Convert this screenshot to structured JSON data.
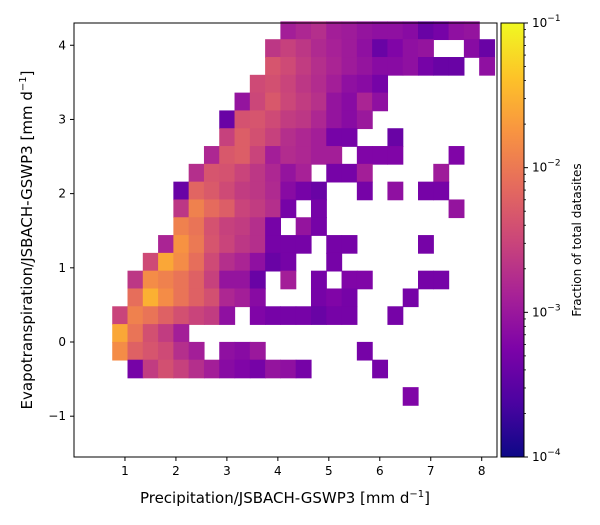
{
  "chart_data": {
    "type": "heatmap",
    "title": "",
    "xlabel_main": "Precipitation/JSBACH-GSWP3 [mm d",
    "xlabel_exp": "−1",
    "xlabel_close": "]",
    "ylabel_main": "Evapotranspiration/JSBACH-GSWP3 [mm d",
    "ylabel_exp": "−1",
    "ylabel_close": "]",
    "xlim": [
      0.0,
      8.3
    ],
    "ylim": [
      -1.55,
      4.3
    ],
    "xticks": [
      1,
      2,
      3,
      4,
      5,
      6,
      7,
      8
    ],
    "yticks": [
      -1,
      0,
      1,
      2,
      3,
      4
    ],
    "x_bin_width": 0.3,
    "y_bin_width": 0.243,
    "colorbar": {
      "label": "Fraction of total datasites",
      "scale": "log",
      "range": [
        0.0001,
        0.1
      ],
      "ticks": [
        {
          "value": 0.1,
          "base": "10",
          "exp": "−1"
        },
        {
          "value": 0.01,
          "base": "10",
          "exp": "−2"
        },
        {
          "value": 0.001,
          "base": "10",
          "exp": "−3"
        },
        {
          "value": 0.0001,
          "base": "10",
          "exp": "−4"
        }
      ],
      "colormap": "plasma"
    },
    "cells": [
      [
        4.2,
        4.2,
        0.0012
      ],
      [
        4.5,
        4.2,
        0.0015
      ],
      [
        4.8,
        4.2,
        0.0018
      ],
      [
        5.1,
        4.2,
        0.0012
      ],
      [
        5.4,
        4.2,
        0.0011
      ],
      [
        5.7,
        4.2,
        0.0009
      ],
      [
        6.0,
        4.2,
        0.0008
      ],
      [
        6.3,
        4.2,
        0.0008
      ],
      [
        6.6,
        4.2,
        0.0007
      ],
      [
        6.9,
        4.2,
        0.0004
      ],
      [
        7.2,
        4.2,
        0.0005
      ],
      [
        7.5,
        4.2,
        0.0008
      ],
      [
        7.8,
        4.2,
        0.0009
      ],
      [
        3.9,
        3.96,
        0.0022
      ],
      [
        4.2,
        3.96,
        0.0028
      ],
      [
        4.5,
        3.96,
        0.0022
      ],
      [
        4.8,
        3.96,
        0.0016
      ],
      [
        5.1,
        3.96,
        0.0013
      ],
      [
        5.4,
        3.96,
        0.0011
      ],
      [
        5.7,
        3.96,
        0.0008
      ],
      [
        6.0,
        3.96,
        0.0004
      ],
      [
        6.3,
        3.96,
        0.0006
      ],
      [
        6.6,
        3.96,
        0.0008
      ],
      [
        6.9,
        3.96,
        0.0009
      ],
      [
        7.8,
        3.96,
        0.0007
      ],
      [
        8.1,
        3.96,
        0.0004
      ],
      [
        3.9,
        3.72,
        0.0045
      ],
      [
        4.2,
        3.72,
        0.0035
      ],
      [
        4.5,
        3.72,
        0.0025
      ],
      [
        4.8,
        3.72,
        0.0018
      ],
      [
        5.1,
        3.72,
        0.0014
      ],
      [
        5.4,
        3.72,
        0.0011
      ],
      [
        5.7,
        3.72,
        0.0009
      ],
      [
        6.0,
        3.72,
        0.0007
      ],
      [
        6.3,
        3.72,
        0.0007
      ],
      [
        6.6,
        3.72,
        0.0008
      ],
      [
        6.9,
        3.72,
        0.0005
      ],
      [
        7.2,
        3.72,
        0.0004
      ],
      [
        7.5,
        3.72,
        0.0004
      ],
      [
        8.1,
        3.72,
        0.0008
      ],
      [
        3.6,
        3.48,
        0.0035
      ],
      [
        3.9,
        3.48,
        0.004
      ],
      [
        4.2,
        3.48,
        0.003
      ],
      [
        4.5,
        3.48,
        0.0022
      ],
      [
        4.8,
        3.48,
        0.0017
      ],
      [
        5.1,
        3.48,
        0.0012
      ],
      [
        5.4,
        3.48,
        0.0008
      ],
      [
        5.7,
        3.48,
        0.0007
      ],
      [
        6.0,
        3.48,
        0.0005
      ],
      [
        3.3,
        3.24,
        0.0009
      ],
      [
        3.6,
        3.24,
        0.0032
      ],
      [
        3.9,
        3.24,
        0.0048
      ],
      [
        4.2,
        3.24,
        0.0032
      ],
      [
        4.5,
        3.24,
        0.0025
      ],
      [
        4.8,
        3.24,
        0.0019
      ],
      [
        5.1,
        3.24,
        0.0009
      ],
      [
        5.4,
        3.24,
        0.0007
      ],
      [
        5.7,
        3.24,
        0.0014
      ],
      [
        6.0,
        3.24,
        0.0008
      ],
      [
        3.0,
        3.0,
        0.0004
      ],
      [
        3.3,
        3.0,
        0.0042
      ],
      [
        3.6,
        3.0,
        0.0045
      ],
      [
        3.9,
        3.0,
        0.0035
      ],
      [
        4.2,
        3.0,
        0.0025
      ],
      [
        4.5,
        3.0,
        0.0022
      ],
      [
        4.8,
        3.0,
        0.0015
      ],
      [
        5.1,
        3.0,
        0.0009
      ],
      [
        5.4,
        3.0,
        0.0007
      ],
      [
        5.7,
        3.0,
        0.001
      ],
      [
        3.0,
        2.76,
        0.0028
      ],
      [
        3.3,
        2.76,
        0.0055
      ],
      [
        3.6,
        2.76,
        0.004
      ],
      [
        3.9,
        2.76,
        0.0028
      ],
      [
        4.2,
        2.76,
        0.0018
      ],
      [
        4.5,
        2.76,
        0.0015
      ],
      [
        4.8,
        2.76,
        0.0012
      ],
      [
        5.1,
        2.76,
        0.0005
      ],
      [
        5.4,
        2.76,
        0.0005
      ],
      [
        6.3,
        2.76,
        0.0004
      ],
      [
        2.7,
        2.52,
        0.0015
      ],
      [
        3.0,
        2.52,
        0.0048
      ],
      [
        3.3,
        2.52,
        0.0055
      ],
      [
        3.6,
        2.52,
        0.003
      ],
      [
        3.9,
        2.52,
        0.0012
      ],
      [
        4.2,
        2.52,
        0.0017
      ],
      [
        4.5,
        2.52,
        0.0015
      ],
      [
        4.8,
        2.52,
        0.0012
      ],
      [
        5.1,
        2.52,
        0.0012
      ],
      [
        5.7,
        2.52,
        0.0006
      ],
      [
        6.0,
        2.52,
        0.0006
      ],
      [
        6.3,
        2.52,
        0.0006
      ],
      [
        7.5,
        2.52,
        0.0006
      ],
      [
        2.4,
        2.28,
        0.0018
      ],
      [
        2.7,
        2.28,
        0.0045
      ],
      [
        3.0,
        2.28,
        0.0042
      ],
      [
        3.3,
        2.28,
        0.003
      ],
      [
        3.6,
        2.28,
        0.0022
      ],
      [
        3.9,
        2.28,
        0.0015
      ],
      [
        4.2,
        2.28,
        0.0009
      ],
      [
        4.5,
        2.28,
        0.0013
      ],
      [
        5.1,
        2.28,
        0.0005
      ],
      [
        5.4,
        2.28,
        0.0005
      ],
      [
        5.7,
        2.28,
        0.0012
      ],
      [
        7.2,
        2.28,
        0.0011
      ],
      [
        2.1,
        2.04,
        0.0004
      ],
      [
        2.4,
        2.04,
        0.0065
      ],
      [
        2.7,
        2.04,
        0.005
      ],
      [
        3.0,
        2.04,
        0.0035
      ],
      [
        3.3,
        2.04,
        0.0025
      ],
      [
        3.6,
        2.04,
        0.0022
      ],
      [
        3.9,
        2.04,
        0.0016
      ],
      [
        4.2,
        2.04,
        0.0007
      ],
      [
        4.5,
        2.04,
        0.0005
      ],
      [
        4.8,
        2.04,
        0.0004
      ],
      [
        5.7,
        2.04,
        0.0005
      ],
      [
        6.3,
        2.04,
        0.0008
      ],
      [
        6.9,
        2.04,
        0.0005
      ],
      [
        7.2,
        2.04,
        0.0005
      ],
      [
        2.1,
        1.8,
        0.0022
      ],
      [
        2.4,
        1.8,
        0.012
      ],
      [
        2.7,
        1.8,
        0.0075
      ],
      [
        3.0,
        1.8,
        0.0055
      ],
      [
        3.3,
        1.8,
        0.003
      ],
      [
        3.6,
        1.8,
        0.0025
      ],
      [
        3.9,
        1.8,
        0.0018
      ],
      [
        4.2,
        1.8,
        0.0005
      ],
      [
        4.8,
        1.8,
        0.0005
      ],
      [
        7.5,
        1.8,
        0.0009
      ],
      [
        2.1,
        1.56,
        0.012
      ],
      [
        2.4,
        1.56,
        0.009
      ],
      [
        2.7,
        1.56,
        0.0042
      ],
      [
        3.0,
        1.56,
        0.0028
      ],
      [
        3.3,
        1.56,
        0.0025
      ],
      [
        3.6,
        1.56,
        0.0018
      ],
      [
        3.9,
        1.56,
        0.0005
      ],
      [
        4.5,
        1.56,
        0.0009
      ],
      [
        4.8,
        1.56,
        0.0005
      ],
      [
        1.8,
        1.32,
        0.0014
      ],
      [
        2.1,
        1.32,
        0.017
      ],
      [
        2.4,
        1.32,
        0.01
      ],
      [
        2.7,
        1.32,
        0.0045
      ],
      [
        3.0,
        1.32,
        0.003
      ],
      [
        3.3,
        1.32,
        0.0022
      ],
      [
        3.6,
        1.32,
        0.0018
      ],
      [
        3.9,
        1.32,
        0.0005
      ],
      [
        4.2,
        1.32,
        0.0005
      ],
      [
        4.5,
        1.32,
        0.0005
      ],
      [
        5.1,
        1.32,
        0.0005
      ],
      [
        5.4,
        1.32,
        0.0005
      ],
      [
        6.9,
        1.32,
        0.0005
      ],
      [
        1.5,
        1.08,
        0.0035
      ],
      [
        1.8,
        1.08,
        0.025
      ],
      [
        2.1,
        1.08,
        0.015
      ],
      [
        2.4,
        1.08,
        0.008
      ],
      [
        2.7,
        1.08,
        0.0035
      ],
      [
        3.0,
        1.08,
        0.0018
      ],
      [
        3.3,
        1.08,
        0.0014
      ],
      [
        3.6,
        1.08,
        0.0008
      ],
      [
        3.9,
        1.08,
        0.0004
      ],
      [
        4.2,
        1.08,
        0.0005
      ],
      [
        5.1,
        1.08,
        0.0005
      ],
      [
        1.2,
        0.84,
        0.0022
      ],
      [
        1.5,
        0.84,
        0.015
      ],
      [
        1.8,
        0.84,
        0.012
      ],
      [
        2.1,
        0.84,
        0.009
      ],
      [
        2.4,
        0.84,
        0.006
      ],
      [
        2.7,
        0.84,
        0.0028
      ],
      [
        3.0,
        0.84,
        0.0009
      ],
      [
        3.3,
        0.84,
        0.0009
      ],
      [
        3.6,
        0.84,
        0.0004
      ],
      [
        4.2,
        0.84,
        0.0012
      ],
      [
        4.8,
        0.84,
        0.0005
      ],
      [
        5.4,
        0.84,
        0.0006
      ],
      [
        5.7,
        0.84,
        0.0006
      ],
      [
        6.9,
        0.84,
        0.0005
      ],
      [
        7.2,
        0.84,
        0.0005
      ],
      [
        1.2,
        0.6,
        0.008
      ],
      [
        1.5,
        0.6,
        0.03
      ],
      [
        1.8,
        0.6,
        0.015
      ],
      [
        2.1,
        0.6,
        0.009
      ],
      [
        2.4,
        0.6,
        0.006
      ],
      [
        2.7,
        0.6,
        0.004
      ],
      [
        3.0,
        0.6,
        0.0015
      ],
      [
        3.3,
        0.6,
        0.0012
      ],
      [
        3.6,
        0.6,
        0.0007
      ],
      [
        4.8,
        0.6,
        0.0005
      ],
      [
        5.1,
        0.6,
        0.0006
      ],
      [
        5.4,
        0.6,
        0.0005
      ],
      [
        6.6,
        0.6,
        0.0005
      ],
      [
        0.9,
        0.36,
        0.003
      ],
      [
        1.2,
        0.36,
        0.012
      ],
      [
        1.5,
        0.36,
        0.009
      ],
      [
        1.8,
        0.36,
        0.006
      ],
      [
        2.1,
        0.36,
        0.004
      ],
      [
        2.4,
        0.36,
        0.003
      ],
      [
        2.7,
        0.36,
        0.0025
      ],
      [
        3.0,
        0.36,
        0.0008
      ],
      [
        3.6,
        0.36,
        0.0006
      ],
      [
        3.9,
        0.36,
        0.0005
      ],
      [
        4.2,
        0.36,
        0.0005
      ],
      [
        4.5,
        0.36,
        0.0005
      ],
      [
        4.8,
        0.36,
        0.0004
      ],
      [
        5.1,
        0.36,
        0.0005
      ],
      [
        5.4,
        0.36,
        0.0005
      ],
      [
        6.3,
        0.36,
        0.0005
      ],
      [
        0.9,
        0.12,
        0.025
      ],
      [
        1.2,
        0.12,
        0.009
      ],
      [
        1.5,
        0.12,
        0.004
      ],
      [
        1.8,
        0.12,
        0.0025
      ],
      [
        2.1,
        0.12,
        0.0012
      ],
      [
        0.9,
        -0.12,
        0.015
      ],
      [
        1.2,
        -0.12,
        0.006
      ],
      [
        1.5,
        -0.12,
        0.0045
      ],
      [
        1.8,
        -0.12,
        0.0035
      ],
      [
        2.1,
        -0.12,
        0.0018
      ],
      [
        2.4,
        -0.12,
        0.0012
      ],
      [
        3.0,
        -0.12,
        0.0008
      ],
      [
        3.3,
        -0.12,
        0.0007
      ],
      [
        3.6,
        -0.12,
        0.001
      ],
      [
        5.7,
        -0.12,
        0.0005
      ],
      [
        1.2,
        -0.36,
        0.0005
      ],
      [
        1.5,
        -0.36,
        0.0025
      ],
      [
        1.8,
        -0.36,
        0.004
      ],
      [
        2.1,
        -0.36,
        0.0028
      ],
      [
        2.4,
        -0.36,
        0.0018
      ],
      [
        2.7,
        -0.36,
        0.0012
      ],
      [
        3.0,
        -0.36,
        0.0007
      ],
      [
        3.3,
        -0.36,
        0.0006
      ],
      [
        3.6,
        -0.36,
        0.0005
      ],
      [
        3.9,
        -0.36,
        0.0009
      ],
      [
        4.2,
        -0.36,
        0.0008
      ],
      [
        4.5,
        -0.36,
        0.0005
      ],
      [
        6.0,
        -0.36,
        0.0005
      ],
      [
        6.6,
        -0.73,
        0.0006
      ]
    ]
  }
}
